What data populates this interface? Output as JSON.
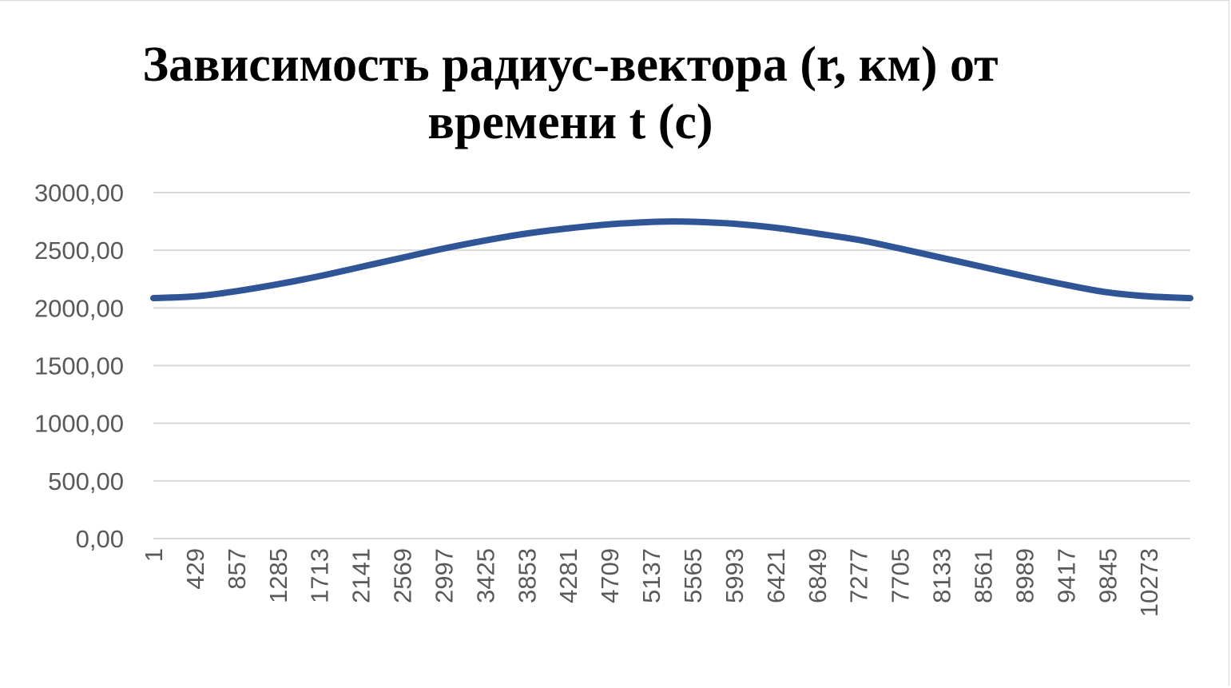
{
  "chart_data": {
    "type": "line",
    "title": [
      "Зависимость радиус-вектора (r, км) от",
      "времени t (с)"
    ],
    "xlabel": "",
    "ylabel": "",
    "ylim": [
      0,
      3000
    ],
    "yticks": [
      {
        "value": 0,
        "label": "0,00"
      },
      {
        "value": 500,
        "label": "500,00"
      },
      {
        "value": 1000,
        "label": "1000,00"
      },
      {
        "value": 1500,
        "label": "1500,00"
      },
      {
        "value": 2000,
        "label": "2000,00"
      },
      {
        "value": 2500,
        "label": "2500,00"
      },
      {
        "value": 3000,
        "label": "3000,00"
      }
    ],
    "xrange": [
      1,
      10700
    ],
    "xticks": [
      "1",
      "429",
      "857",
      "1285",
      "1713",
      "2141",
      "2569",
      "2997",
      "3425",
      "3853",
      "4281",
      "4709",
      "5137",
      "5565",
      "5993",
      "6421",
      "6849",
      "7277",
      "7705",
      "8133",
      "8561",
      "8989",
      "9417",
      "9845",
      "10273"
    ],
    "grid": true,
    "legend": "none",
    "series": [
      {
        "color": "#2f5597",
        "x": [
          1,
          429,
          857,
          1285,
          1713,
          2141,
          2569,
          2997,
          3425,
          3853,
          4281,
          4709,
          5137,
          5350,
          5565,
          5993,
          6421,
          6849,
          7277,
          7705,
          8133,
          8561,
          8989,
          9417,
          9845,
          10273,
          10700
        ],
        "y": [
          2085,
          2100,
          2145,
          2205,
          2275,
          2355,
          2435,
          2515,
          2585,
          2645,
          2690,
          2725,
          2745,
          2750,
          2747,
          2730,
          2695,
          2645,
          2590,
          2515,
          2435,
          2355,
          2275,
          2200,
          2135,
          2100,
          2085
        ]
      }
    ]
  }
}
